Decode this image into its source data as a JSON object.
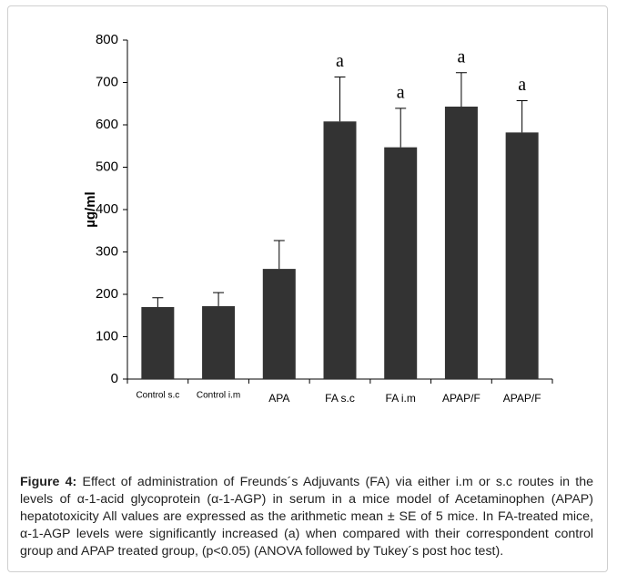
{
  "chart_data": {
    "type": "bar",
    "ylabel": "µg/ml",
    "categories": [
      "Control s.c",
      "Control i.m",
      "APA",
      "FA  s.c",
      "FA i.m",
      "APAP/F",
      "APAP/F"
    ],
    "values": [
      170,
      172,
      260,
      608,
      547,
      643,
      582
    ],
    "errors": [
      22,
      32,
      67,
      105,
      92,
      80,
      75
    ],
    "bar_annotations": [
      null,
      null,
      null,
      "a",
      "a",
      "a",
      "a"
    ],
    "color": "#333333",
    "ylim": [
      0,
      800
    ],
    "yticks": [
      0,
      100,
      200,
      300,
      400,
      500,
      600,
      700,
      800
    ],
    "grid": false
  },
  "caption": {
    "label": "Figure 4:",
    "text": " Effect of administration of  Freunds´s Adjuvants (FA) via either i.m or s.c routes in the levels of α-1-acid glycoprotein (α-1-AGP) in serum in a mice model of Acetaminophen (APAP) hepatotoxicity All values are expressed as the arithmetic mean ± SE of 5 mice. In FA-treated mice, α-1-AGP levels were significantly increased (a) when compared with their correspondent control group and APAP treated group, (p<0.05) (ANOVA followed by Tukey´s post hoc test)."
  }
}
